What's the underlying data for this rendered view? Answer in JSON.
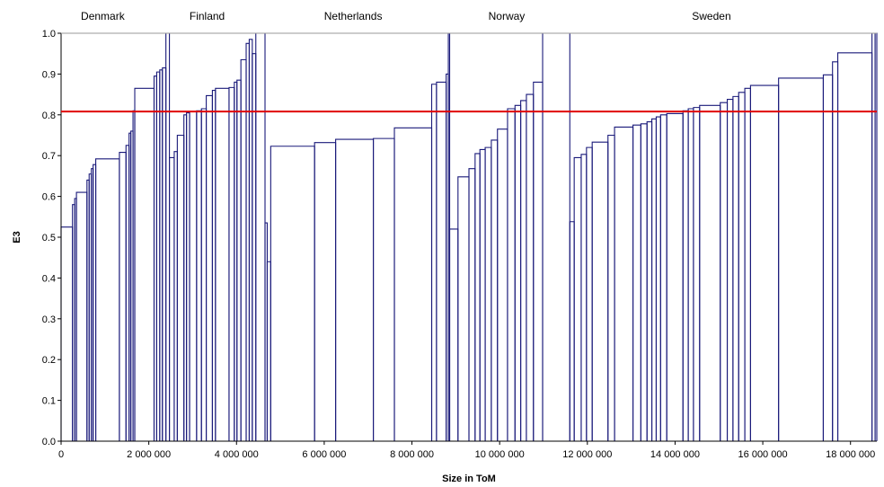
{
  "chart_data": {
    "type": "step-bar",
    "xlabel": "Size in ToM",
    "ylabel": "E3",
    "xlim": [
      0,
      18600000
    ],
    "ylim": [
      0,
      1.0
    ],
    "x_ticks": [
      {
        "value": 0,
        "label": "0"
      },
      {
        "value": 2000000,
        "label": "2 000 000"
      },
      {
        "value": 4000000,
        "label": "4 000 000"
      },
      {
        "value": 6000000,
        "label": "6 000 000"
      },
      {
        "value": 8000000,
        "label": "8 000 000"
      },
      {
        "value": 10000000,
        "label": "10 000 000"
      },
      {
        "value": 12000000,
        "label": "12 000 000"
      },
      {
        "value": 14000000,
        "label": "14 000 000"
      },
      {
        "value": 16000000,
        "label": "16 000 000"
      },
      {
        "value": 18000000,
        "label": "18 000 000"
      }
    ],
    "y_ticks": [
      {
        "value": 0.0,
        "label": "0.0"
      },
      {
        "value": 0.1,
        "label": "0.1"
      },
      {
        "value": 0.2,
        "label": "0.2"
      },
      {
        "value": 0.3,
        "label": "0.3"
      },
      {
        "value": 0.4,
        "label": "0.4"
      },
      {
        "value": 0.5,
        "label": "0.5"
      },
      {
        "value": 0.6,
        "label": "0.6"
      },
      {
        "value": 0.7,
        "label": "0.7"
      },
      {
        "value": 0.8,
        "label": "0.8"
      },
      {
        "value": 0.9,
        "label": "0.9"
      },
      {
        "value": 1.0,
        "label": "1.0"
      }
    ],
    "reference_line": {
      "value": 0.808,
      "color": "#e00000"
    },
    "bar_color": "#1a1a7a",
    "groups": [
      {
        "name": "Denmark",
        "x0": 0,
        "x1": 2480000,
        "label_x": 950000
      },
      {
        "name": "Finland",
        "x0": 2480000,
        "x1": 4780000,
        "label_x": 3330000
      },
      {
        "name": "Netherlands",
        "x0": 4780000,
        "x1": 8800000,
        "label_x": 6660000
      },
      {
        "name": "Norway",
        "x0": 8800000,
        "x1": 11650000,
        "label_x": 10160000
      },
      {
        "name": "Sweden",
        "x0": 11650000,
        "x1": 18600000,
        "label_x": 14830000
      }
    ],
    "breaks": [
      [
        0,
        0.525
      ],
      [
        260000,
        0.58
      ],
      [
        310000,
        0.595
      ],
      [
        350000,
        0.61
      ],
      [
        590000,
        0.64
      ],
      [
        640000,
        0.655
      ],
      [
        690000,
        0.668
      ],
      [
        730000,
        0.678
      ],
      [
        790000,
        0.692
      ],
      [
        1330000,
        0.708
      ],
      [
        1480000,
        0.725
      ],
      [
        1550000,
        0.755
      ],
      [
        1590000,
        0.76
      ],
      [
        1640000,
        0.81
      ],
      [
        1680000,
        0.865
      ],
      [
        2120000,
        0.895
      ],
      [
        2180000,
        0.905
      ],
      [
        2250000,
        0.91
      ],
      [
        2310000,
        0.915
      ],
      [
        2390000,
        1.0
      ],
      [
        2470000,
        0.695
      ],
      [
        2580000,
        0.71
      ],
      [
        2650000,
        0.75
      ],
      [
        2800000,
        0.8
      ],
      [
        2860000,
        0.805
      ],
      [
        2930000,
        0.808
      ],
      [
        3090000,
        0.81
      ],
      [
        3200000,
        0.815
      ],
      [
        3310000,
        0.847
      ],
      [
        3450000,
        0.86
      ],
      [
        3520000,
        0.865
      ],
      [
        3830000,
        0.867
      ],
      [
        3950000,
        0.88
      ],
      [
        4010000,
        0.885
      ],
      [
        4100000,
        0.935
      ],
      [
        4220000,
        0.975
      ],
      [
        4290000,
        0.985
      ],
      [
        4360000,
        0.95
      ],
      [
        4440000,
        1.0
      ],
      [
        4650000,
        0.535
      ],
      [
        4700000,
        0.44
      ],
      [
        4780000,
        0.723
      ],
      [
        5780000,
        0.732
      ],
      [
        6260000,
        0.74
      ],
      [
        7120000,
        0.742
      ],
      [
        7600000,
        0.768
      ],
      [
        8450000,
        0.875
      ],
      [
        8560000,
        0.88
      ],
      [
        8780000,
        0.9
      ],
      [
        8830000,
        1.0
      ],
      [
        8860000,
        0.52
      ],
      [
        9050000,
        0.648
      ],
      [
        9300000,
        0.668
      ],
      [
        9440000,
        0.705
      ],
      [
        9550000,
        0.715
      ],
      [
        9670000,
        0.72
      ],
      [
        9810000,
        0.738
      ],
      [
        9950000,
        0.765
      ],
      [
        10180000,
        0.815
      ],
      [
        10350000,
        0.823
      ],
      [
        10480000,
        0.835
      ],
      [
        10610000,
        0.85
      ],
      [
        10770000,
        0.88
      ],
      [
        10980000,
        1.0
      ],
      [
        11600000,
        0.538
      ],
      [
        11700000,
        0.695
      ],
      [
        11860000,
        0.703
      ],
      [
        11980000,
        0.72
      ],
      [
        12110000,
        0.733
      ],
      [
        12470000,
        0.75
      ],
      [
        12620000,
        0.77
      ],
      [
        13040000,
        0.775
      ],
      [
        13220000,
        0.778
      ],
      [
        13360000,
        0.783
      ],
      [
        13470000,
        0.79
      ],
      [
        13570000,
        0.795
      ],
      [
        13670000,
        0.8
      ],
      [
        13810000,
        0.803
      ],
      [
        14180000,
        0.81
      ],
      [
        14300000,
        0.815
      ],
      [
        14420000,
        0.818
      ],
      [
        14560000,
        0.823
      ],
      [
        15030000,
        0.83
      ],
      [
        15190000,
        0.838
      ],
      [
        15320000,
        0.845
      ],
      [
        15450000,
        0.855
      ],
      [
        15590000,
        0.865
      ],
      [
        15720000,
        0.872
      ],
      [
        16360000,
        0.89
      ],
      [
        17380000,
        0.898
      ],
      [
        17590000,
        0.93
      ],
      [
        17710000,
        0.952
      ],
      [
        18490000,
        1.0
      ],
      [
        18560000,
        1.0
      ]
    ],
    "x_end": 18600000,
    "grid": false,
    "legend": "none"
  }
}
